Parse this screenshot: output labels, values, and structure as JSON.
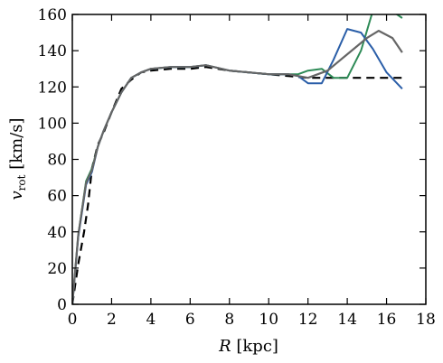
{
  "chart_data": {
    "type": "line",
    "xlabel_parts": {
      "symbol": "R",
      "unit": " [kpc]"
    },
    "ylabel_parts": {
      "symbol": "v",
      "subscript": "rot",
      "unit": " [km/s]"
    },
    "xlim": [
      0,
      18
    ],
    "ylim": [
      0,
      160
    ],
    "x_ticks": [
      "0",
      "2",
      "4",
      "6",
      "8",
      "10",
      "12",
      "14",
      "16",
      "18"
    ],
    "y_ticks": [
      "0",
      "20",
      "40",
      "60",
      "80",
      "100",
      "120",
      "140",
      "160"
    ],
    "grid": false,
    "legend": "none",
    "series": [
      {
        "color": "#000000",
        "dashed": true,
        "width": 2.2,
        "x": [
          0.0,
          0.3,
          0.6,
          0.8,
          1.0,
          1.3,
          1.6,
          2.0,
          2.5,
          3.0,
          3.5,
          4.0,
          5.0,
          6.0,
          6.8,
          8.0,
          9.0,
          10.0,
          11.0,
          12.0,
          13.0,
          14.0,
          15.0,
          16.0,
          16.8
        ],
        "y": [
          0,
          22,
          40,
          55,
          75,
          88,
          95,
          106,
          119,
          124,
          128,
          129,
          130,
          130,
          131,
          129,
          128,
          127,
          126,
          125,
          125,
          125,
          125,
          125,
          125
        ]
      },
      {
        "color": "#2e8b57",
        "dashed": false,
        "width": 2.0,
        "x": [
          0.0,
          0.3,
          0.7,
          1.0,
          1.3,
          1.6,
          2.0,
          2.5,
          3.0,
          3.5,
          4.0,
          5.0,
          6.0,
          6.8,
          8.0,
          9.0,
          10.0,
          11.0,
          11.5,
          12.0,
          12.7,
          13.3,
          14.0,
          14.7,
          15.3,
          16.0,
          16.8
        ],
        "y": [
          0,
          38,
          68,
          75,
          87,
          96,
          106,
          117,
          125,
          128,
          130,
          131,
          131,
          132,
          129,
          128,
          127,
          127,
          127,
          129,
          130,
          125,
          125,
          140,
          162,
          164,
          158
        ]
      },
      {
        "color": "#2a5ea8",
        "dashed": false,
        "width": 2.0,
        "x": [
          0.0,
          0.3,
          0.7,
          1.0,
          1.3,
          1.6,
          2.0,
          2.5,
          3.0,
          3.5,
          4.0,
          5.0,
          6.0,
          6.8,
          8.0,
          9.0,
          10.0,
          11.0,
          11.5,
          12.0,
          12.7,
          13.3,
          14.0,
          14.7,
          15.3,
          16.0,
          16.8
        ],
        "y": [
          0,
          37,
          66,
          73,
          87,
          96,
          106,
          117,
          125,
          128,
          130,
          131,
          131,
          132,
          129,
          128,
          127,
          127,
          126,
          122,
          122,
          135,
          152,
          150,
          141,
          128,
          119
        ]
      },
      {
        "color": "#666666",
        "dashed": false,
        "width": 2.2,
        "x": [
          0.0,
          0.3,
          0.7,
          1.0,
          1.3,
          1.6,
          2.0,
          2.5,
          3.0,
          3.5,
          4.0,
          5.0,
          6.0,
          6.8,
          8.0,
          9.0,
          10.0,
          11.0,
          12.0,
          13.0,
          14.0,
          15.0,
          15.6,
          16.3,
          16.8
        ],
        "y": [
          0,
          38,
          67,
          74,
          87,
          96,
          106,
          117,
          125,
          128,
          130,
          131,
          131,
          132,
          129,
          128,
          127,
          127,
          125,
          129,
          138,
          147,
          151,
          147,
          139
        ]
      }
    ]
  }
}
